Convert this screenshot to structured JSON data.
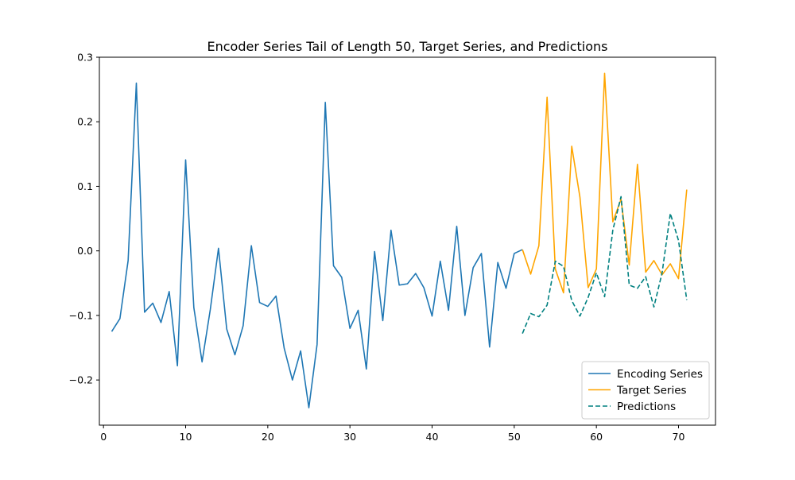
{
  "chart_data": {
    "type": "line",
    "title": "Encoder Series Tail of Length 50, Target Series, and Predictions",
    "xlabel": "",
    "ylabel": "",
    "xlim": [
      -0.5,
      74.5
    ],
    "ylim": [
      -0.27,
      0.3
    ],
    "x_ticks": [
      0,
      10,
      20,
      30,
      40,
      50,
      60,
      70
    ],
    "y_ticks": [
      -0.2,
      -0.1,
      0.0,
      0.1,
      0.2,
      0.3
    ],
    "x_tick_labels": [
      "0",
      "10",
      "20",
      "30",
      "40",
      "50",
      "60",
      "70"
    ],
    "y_tick_labels": [
      "−0.2",
      "−0.1",
      "0.0",
      "0.1",
      "0.2",
      "0.3"
    ],
    "grid": false,
    "legend_position": "lower-right",
    "series": [
      {
        "name": "Encoding Series",
        "color": "#1f77b4",
        "dash": "solid",
        "x": [
          1,
          2,
          3,
          4,
          5,
          6,
          7,
          8,
          9,
          10,
          11,
          12,
          13,
          14,
          15,
          16,
          17,
          18,
          19,
          20,
          21,
          22,
          23,
          24,
          25,
          26,
          27,
          28,
          29,
          30,
          31,
          32,
          33,
          34,
          35,
          36,
          37,
          38,
          39,
          40,
          41,
          42,
          43,
          44,
          45,
          46,
          47,
          48,
          49,
          50,
          51
        ],
        "values": [
          -0.125,
          -0.105,
          -0.015,
          0.26,
          -0.095,
          -0.081,
          -0.111,
          -0.063,
          -0.178,
          0.141,
          -0.088,
          -0.172,
          -0.091,
          0.004,
          -0.121,
          -0.161,
          -0.116,
          0.008,
          -0.08,
          -0.086,
          -0.07,
          -0.151,
          -0.2,
          -0.155,
          -0.243,
          -0.145,
          0.23,
          -0.023,
          -0.041,
          -0.12,
          -0.092,
          -0.183,
          -0.001,
          -0.108,
          0.032,
          -0.053,
          -0.051,
          -0.035,
          -0.057,
          -0.101,
          -0.016,
          -0.092,
          0.038,
          -0.1,
          -0.026,
          -0.004,
          -0.149,
          -0.018,
          -0.058,
          -0.004,
          0.002
        ]
      },
      {
        "name": "Target Series",
        "color": "#ffa500",
        "dash": "solid",
        "x": [
          51,
          52,
          53,
          54,
          55,
          56,
          57,
          58,
          59,
          60,
          61,
          62,
          63,
          64,
          65,
          66,
          67,
          68,
          69,
          70,
          71
        ],
        "values": [
          0.002,
          -0.036,
          0.008,
          0.238,
          -0.028,
          -0.065,
          0.162,
          0.083,
          -0.057,
          -0.028,
          0.275,
          0.045,
          0.08,
          -0.022,
          0.134,
          -0.033,
          -0.015,
          -0.037,
          -0.02,
          -0.043,
          0.095
        ]
      },
      {
        "name": "Predictions",
        "color": "#008080",
        "dash": "dashed",
        "x": [
          51,
          52,
          53,
          54,
          55,
          56,
          57,
          58,
          59,
          60,
          61,
          62,
          63,
          64,
          65,
          66,
          67,
          68,
          69,
          70,
          71
        ],
        "values": [
          -0.128,
          -0.097,
          -0.102,
          -0.084,
          -0.016,
          -0.024,
          -0.077,
          -0.101,
          -0.072,
          -0.034,
          -0.071,
          0.032,
          0.084,
          -0.053,
          -0.058,
          -0.04,
          -0.087,
          -0.034,
          0.058,
          0.016,
          -0.076
        ]
      }
    ]
  }
}
